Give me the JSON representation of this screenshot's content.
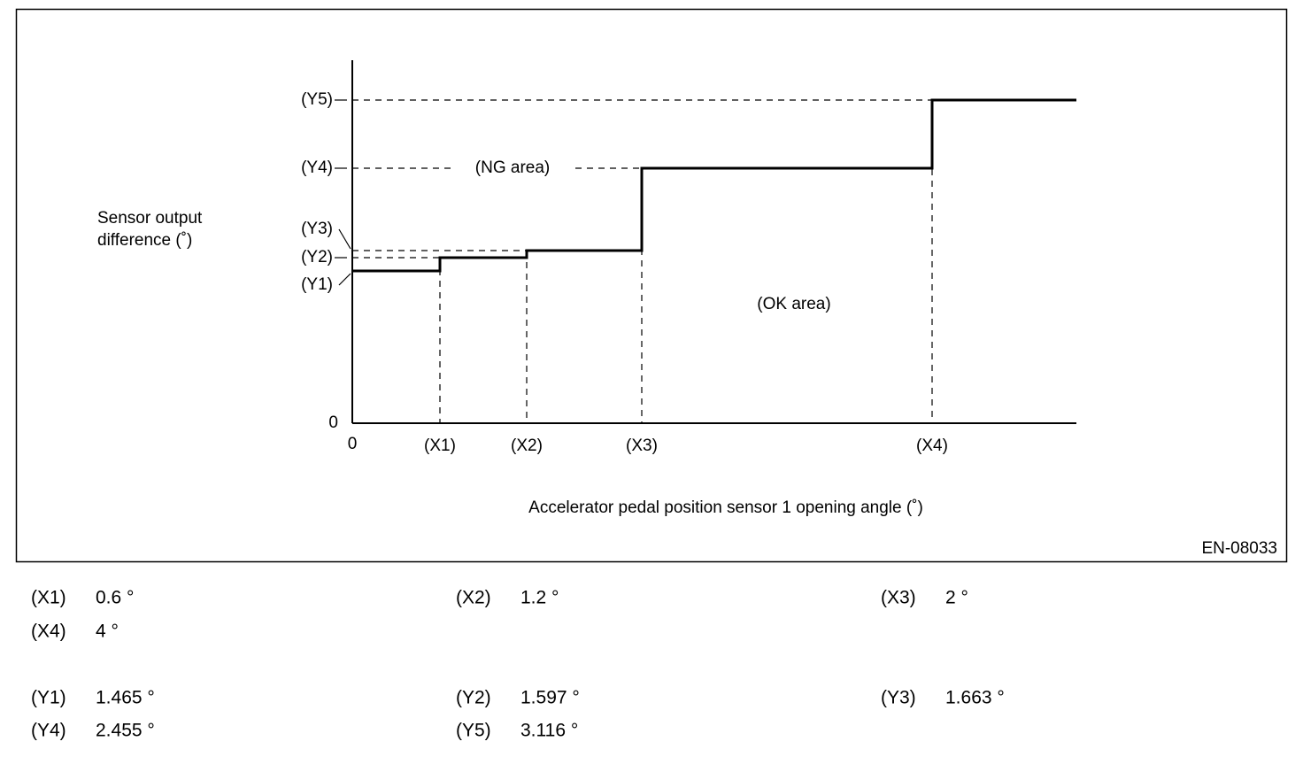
{
  "diagram": {
    "y_axis_label": [
      "Sensor output",
      "difference (˚)"
    ],
    "x_axis_label": "Accelerator pedal position sensor 1 opening angle (˚)",
    "origin_x": "0",
    "origin_y": "0",
    "x_ticks": [
      "(X1)",
      "(X2)",
      "(X3)",
      "(X4)"
    ],
    "y_ticks": [
      "(Y1)",
      "(Y2)",
      "(Y3)",
      "(Y4)",
      "(Y5)"
    ],
    "ng_area": "(NG area)",
    "ok_area": "(OK area)",
    "figure_id": "EN-08033",
    "values": [
      [
        {
          "label": "(X1)",
          "value": "0.6 °"
        },
        {
          "label": "(X2)",
          "value": "1.2 °"
        },
        {
          "label": "(X3)",
          "value": "2 °"
        }
      ],
      [
        {
          "label": "(X4)",
          "value": "4 °"
        }
      ],
      [
        {
          "label": "(Y1)",
          "value": "1.465 °"
        },
        {
          "label": "(Y2)",
          "value": "1.597 °"
        },
        {
          "label": "(Y3)",
          "value": "1.663 °"
        }
      ],
      [
        {
          "label": "(Y4)",
          "value": "2.455 °"
        },
        {
          "label": "(Y5)",
          "value": "3.116 °"
        }
      ]
    ]
  }
}
